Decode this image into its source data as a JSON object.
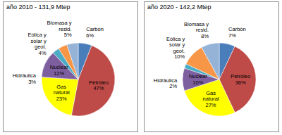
{
  "chart_data": [
    {
      "type": "pie",
      "title": "año 2010 - 131,9 Mtep",
      "categories": [
        "Carbón",
        "Petróleo",
        "Gas natural",
        "Nuclear",
        "Hidráulica",
        "Eólica y solar y geot.",
        "Biomasa y resid."
      ],
      "values": [
        6,
        47,
        23,
        12,
        3,
        4,
        5
      ],
      "value_labels": [
        "6%",
        "47%",
        "23%",
        "12%",
        "3%",
        "4%",
        "5%"
      ],
      "colors": [
        "#4a7ebb",
        "#be4b48",
        "#ffff00",
        "#7d5fa0",
        "#4bacc6",
        "#f79646",
        "#95b3d7"
      ],
      "data_labels": true
    },
    {
      "type": "pie",
      "title": "año 2020 - 142,2 Mtep",
      "categories": [
        "Carbón",
        "Petróleo",
        "Gas natural",
        "Nuclear",
        "Hidráulica",
        "Eólica y solar y geot.",
        "Biomasa y resid."
      ],
      "values": [
        7,
        36,
        27,
        10,
        2,
        10,
        8
      ],
      "value_labels": [
        "7%",
        "36%",
        "27%",
        "10%",
        "2%",
        "10%",
        "8%"
      ],
      "colors": [
        "#4a7ebb",
        "#be4b48",
        "#ffff00",
        "#7d5fa0",
        "#4bacc6",
        "#f79646",
        "#95b3d7"
      ],
      "data_labels": true
    }
  ]
}
